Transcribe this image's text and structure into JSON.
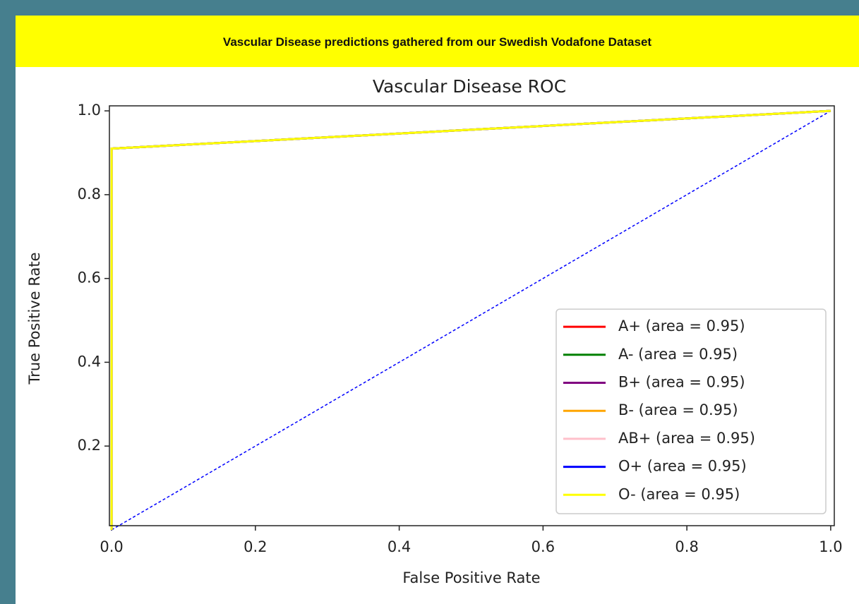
{
  "header": {
    "title": "Vascular Disease predictions gathered from our Swedish Vodafone Dataset"
  },
  "chart_data": {
    "type": "line",
    "title": "Vascular Disease ROC",
    "x_label": "False Positive Rate",
    "y_label": "True Positive Rate",
    "xlim": [
      -0.003,
      1.005
    ],
    "ylim": [
      0.01,
      1.012
    ],
    "xticks": [
      {
        "value": 0,
        "label": "0.0"
      },
      0.2,
      0.4,
      0.6,
      0.8,
      {
        "value": 1,
        "label": "1.0"
      }
    ],
    "yticks": [
      0.2,
      0.4,
      0.6,
      0.8,
      {
        "value": 1,
        "label": "1.0"
      }
    ],
    "legend": "lower right",
    "series": [
      {
        "name": "A+ (area = 0.95)",
        "color": "red",
        "x": [
          0,
          0,
          1
        ],
        "y": [
          0,
          0.91,
          1
        ]
      },
      {
        "name": "A- (area = 0.95)",
        "color": "green",
        "x": [
          0,
          0,
          1
        ],
        "y": [
          0,
          0.91,
          1
        ]
      },
      {
        "name": "B+ (area = 0.95)",
        "color": "purple",
        "x": [
          0,
          0,
          1
        ],
        "y": [
          0,
          0.91,
          1
        ]
      },
      {
        "name": "B- (area = 0.95)",
        "color": "orange",
        "x": [
          0,
          0,
          1
        ],
        "y": [
          0,
          0.91,
          1
        ]
      },
      {
        "name": "AB+ (area = 0.95)",
        "color": "pink",
        "x": [
          0,
          0,
          1
        ],
        "y": [
          0,
          0.91,
          1
        ]
      },
      {
        "name": "O+ (area = 0.95)",
        "color": "blue",
        "x": [
          0,
          0,
          1
        ],
        "y": [
          0,
          0.91,
          1
        ]
      },
      {
        "name": "O- (area = 0.95)",
        "color": "yellow",
        "x": [
          0,
          0,
          1
        ],
        "y": [
          0,
          0.91,
          1
        ]
      }
    ],
    "diagonal": {
      "color": "blue",
      "dashed": true,
      "x": [
        0,
        1
      ],
      "y": [
        0,
        1
      ]
    }
  }
}
